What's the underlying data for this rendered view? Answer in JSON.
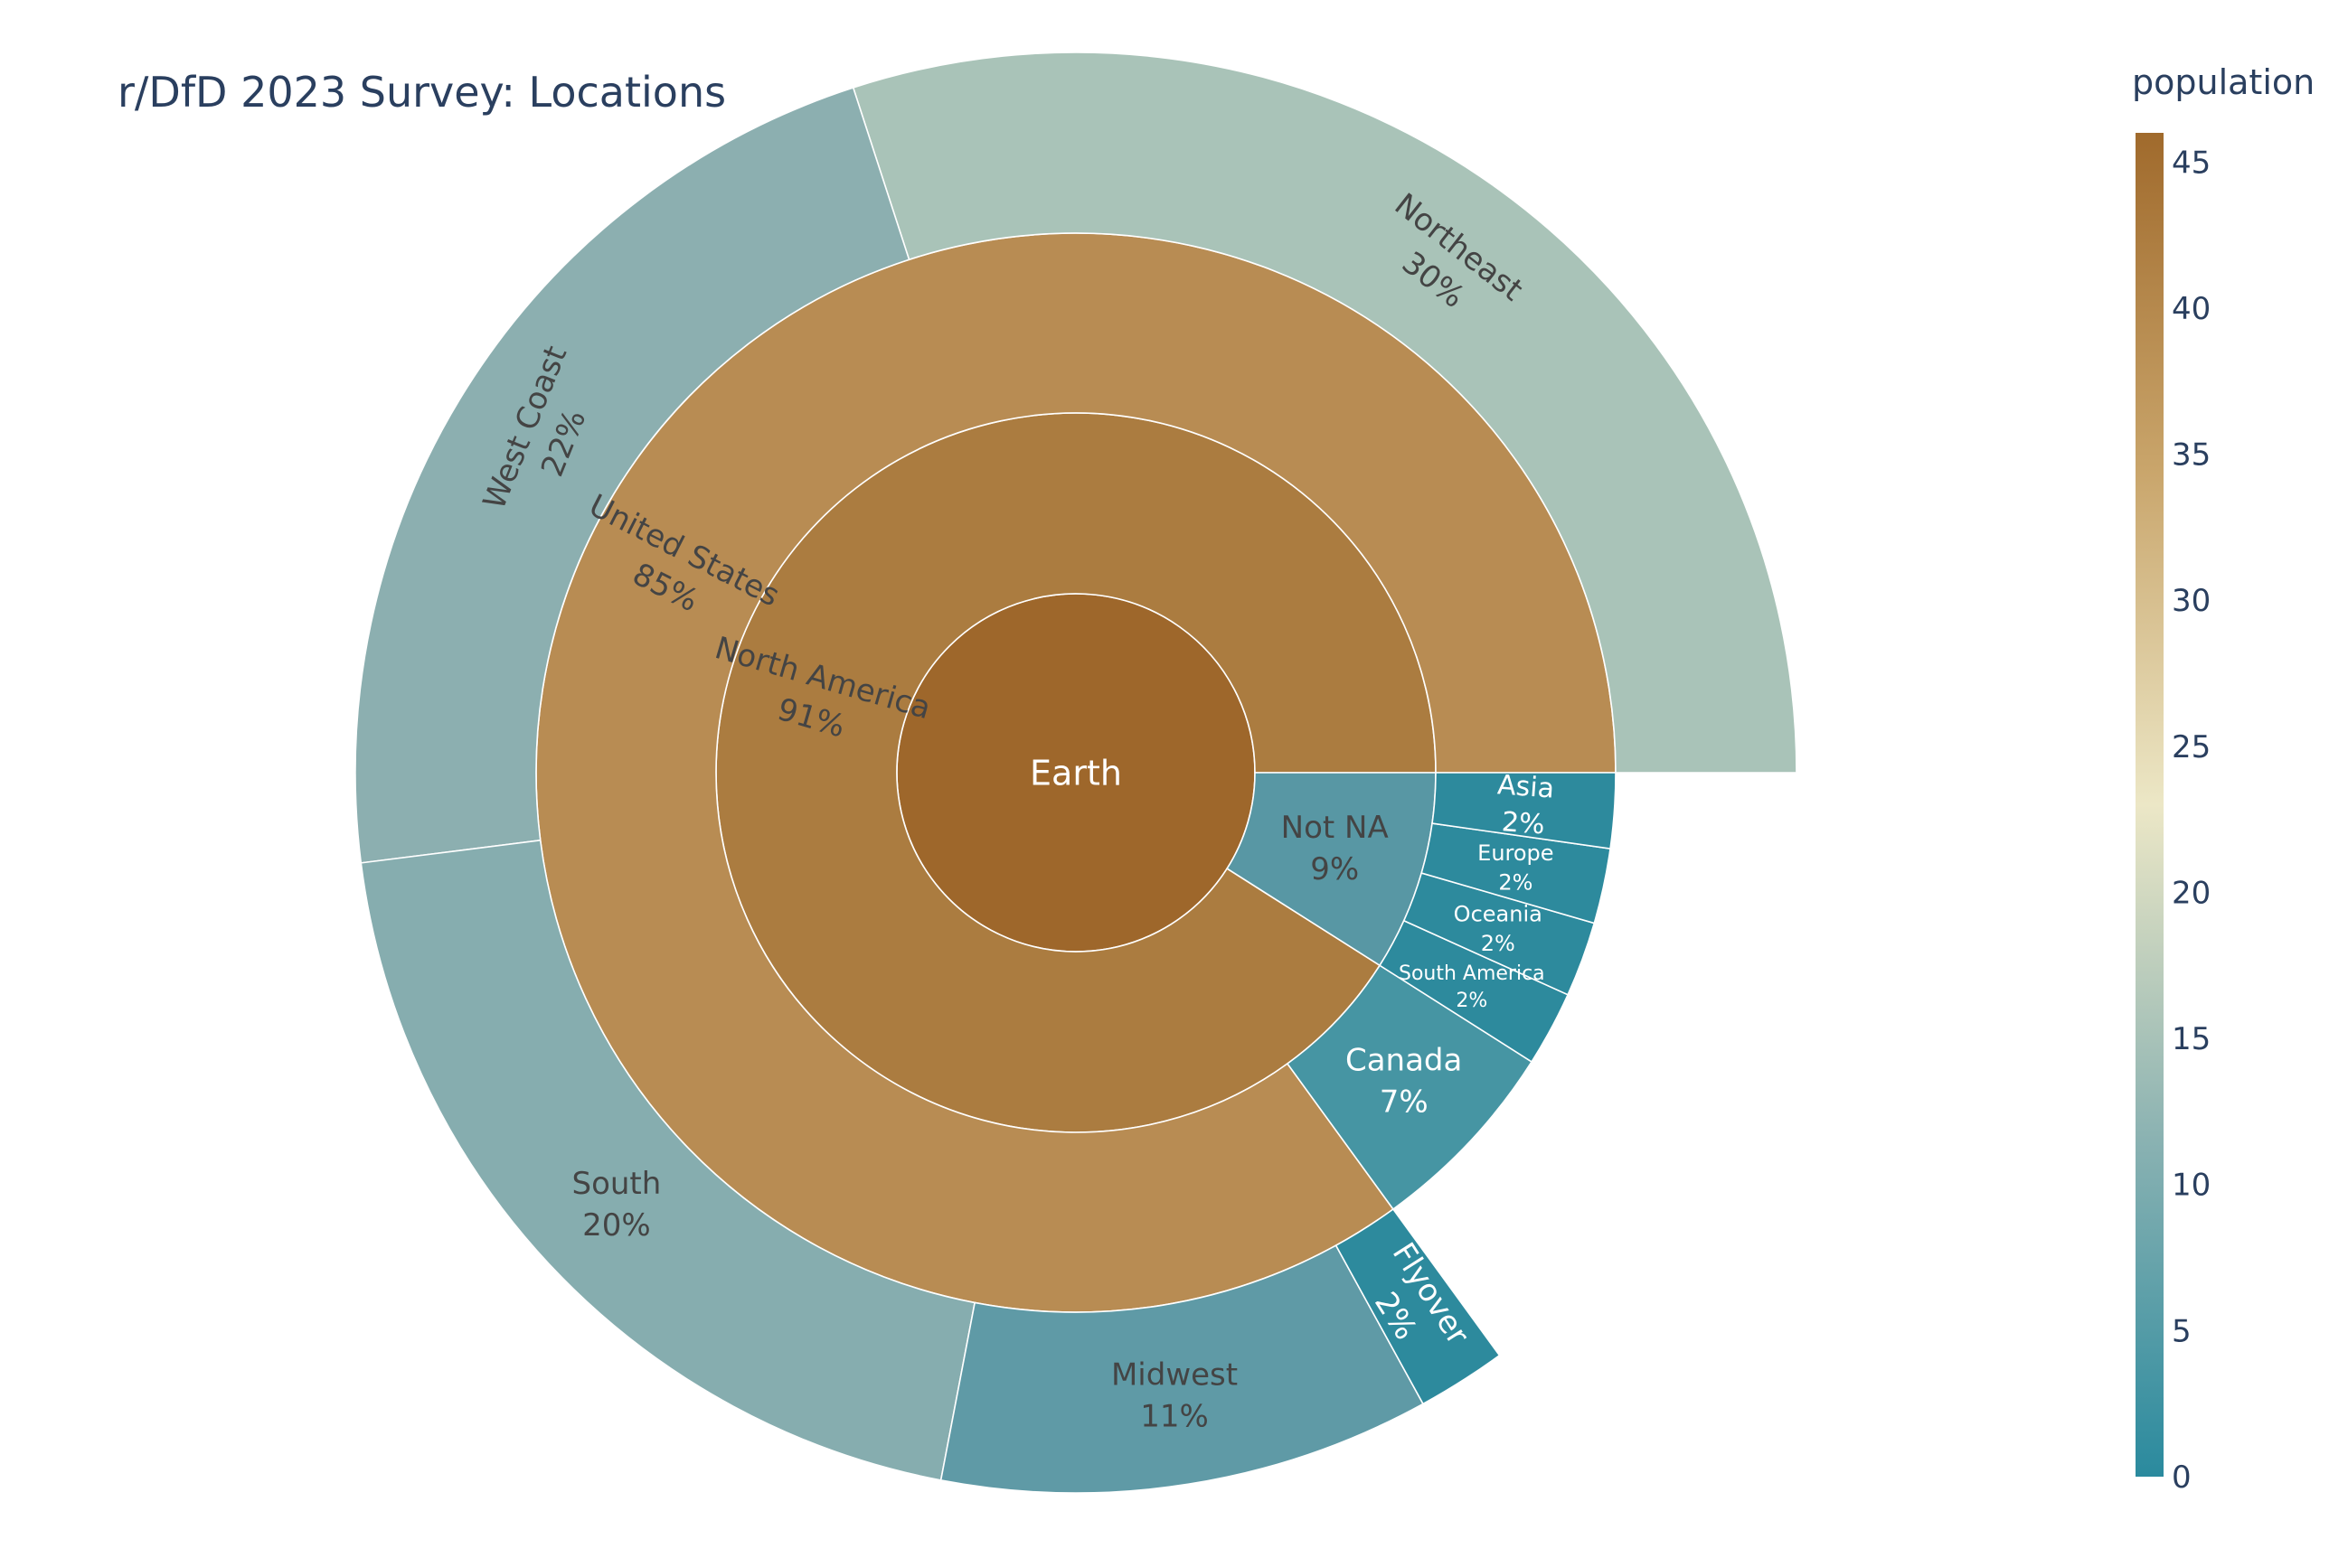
{
  "chart_data": {
    "type": "sunburst",
    "title": "r/DfD 2023 Survey: Locations",
    "value_label": "population",
    "colorbar": {
      "title": "population",
      "range": [
        0,
        46
      ],
      "ticks": [
        0,
        5,
        10,
        15,
        20,
        25,
        30,
        35,
        40,
        45
      ],
      "colorscale": [
        "#2a8a9e",
        "#8ab2b2",
        "#ece7c6",
        "#c9a56b",
        "#a06a2c"
      ]
    },
    "nodes": [
      {
        "id": "earth",
        "label": "Earth",
        "percent": "",
        "value": 46,
        "depth": 0,
        "start": 0,
        "end": 1,
        "color": "#9e672b",
        "text_color": "#ffffff",
        "font": 38,
        "radial": false
      },
      {
        "id": "north-america",
        "label": "North America",
        "percent": "91%",
        "value": 42,
        "depth": 1,
        "start": 0,
        "end": 0.91,
        "color": "#ab7c40",
        "text_color": "#444444",
        "font": 34,
        "radial": true
      },
      {
        "id": "not-na",
        "label": "Not NA",
        "percent": "9%",
        "value": 4,
        "depth": 1,
        "start": 0.91,
        "end": 1,
        "color": "#5897a4",
        "text_color": "#444444",
        "font": 34,
        "radial": false
      },
      {
        "id": "united-states",
        "label": "United States",
        "percent": "85%",
        "value": 39,
        "depth": 2,
        "start": 0,
        "end": 0.85,
        "color": "#b88c53",
        "text_color": "#444444",
        "font": 34,
        "radial": true
      },
      {
        "id": "canada",
        "label": "Canada",
        "percent": "7%",
        "value": 3,
        "depth": 2,
        "start": 0.85,
        "end": 0.91,
        "color": "#4695a3",
        "text_color": "#ffffff",
        "font": 34,
        "radial": false
      },
      {
        "id": "south-america",
        "label": "South America",
        "percent": "2%",
        "value": 1,
        "depth": 2,
        "start": 0.91,
        "end": 0.9325,
        "color": "#2d8a9d",
        "text_color": "#ffffff",
        "font": 22,
        "radial": false
      },
      {
        "id": "oceania",
        "label": "Oceania",
        "percent": "2%",
        "value": 1,
        "depth": 2,
        "start": 0.9325,
        "end": 0.955,
        "color": "#2d8a9d",
        "text_color": "#ffffff",
        "font": 24,
        "radial": false
      },
      {
        "id": "europe",
        "label": "Europe",
        "percent": "2%",
        "value": 1,
        "depth": 2,
        "start": 0.955,
        "end": 0.9775,
        "color": "#2d8a9d",
        "text_color": "#ffffff",
        "font": 24,
        "radial": false
      },
      {
        "id": "asia",
        "label": "Asia",
        "percent": "2%",
        "value": 1,
        "depth": 2,
        "start": 0.9775,
        "end": 1,
        "color": "#2d8a9d",
        "text_color": "#ffffff",
        "font": 30,
        "radial": true
      },
      {
        "id": "northeast",
        "label": "Northeast",
        "percent": "30%",
        "value": 14,
        "depth": 3,
        "start": 0,
        "end": 0.3,
        "color": "#a9c3b8",
        "text_color": "#444444",
        "font": 34,
        "radial": false
      },
      {
        "id": "west-coast",
        "label": "West Coast",
        "percent": "22%",
        "value": 10,
        "depth": 3,
        "start": 0.3,
        "end": 0.52,
        "color": "#8cafb0",
        "text_color": "#444444",
        "font": 34,
        "radial": false
      },
      {
        "id": "south",
        "label": "South",
        "percent": "20%",
        "value": 9,
        "depth": 3,
        "start": 0.52,
        "end": 0.72,
        "color": "#86adaf",
        "text_color": "#444444",
        "font": 34,
        "radial": false
      },
      {
        "id": "midwest",
        "label": "Midwest",
        "percent": "11%",
        "value": 5,
        "depth": 3,
        "start": 0.72,
        "end": 0.83,
        "color": "#5f9aa6",
        "text_color": "#444444",
        "font": 34,
        "radial": false
      },
      {
        "id": "flyover",
        "label": "Flyover",
        "percent": "2%",
        "value": 1,
        "depth": 3,
        "start": 0.83,
        "end": 0.85,
        "color": "#2d8a9d",
        "text_color": "#ffffff",
        "font": 34,
        "radial": true
      }
    ]
  }
}
